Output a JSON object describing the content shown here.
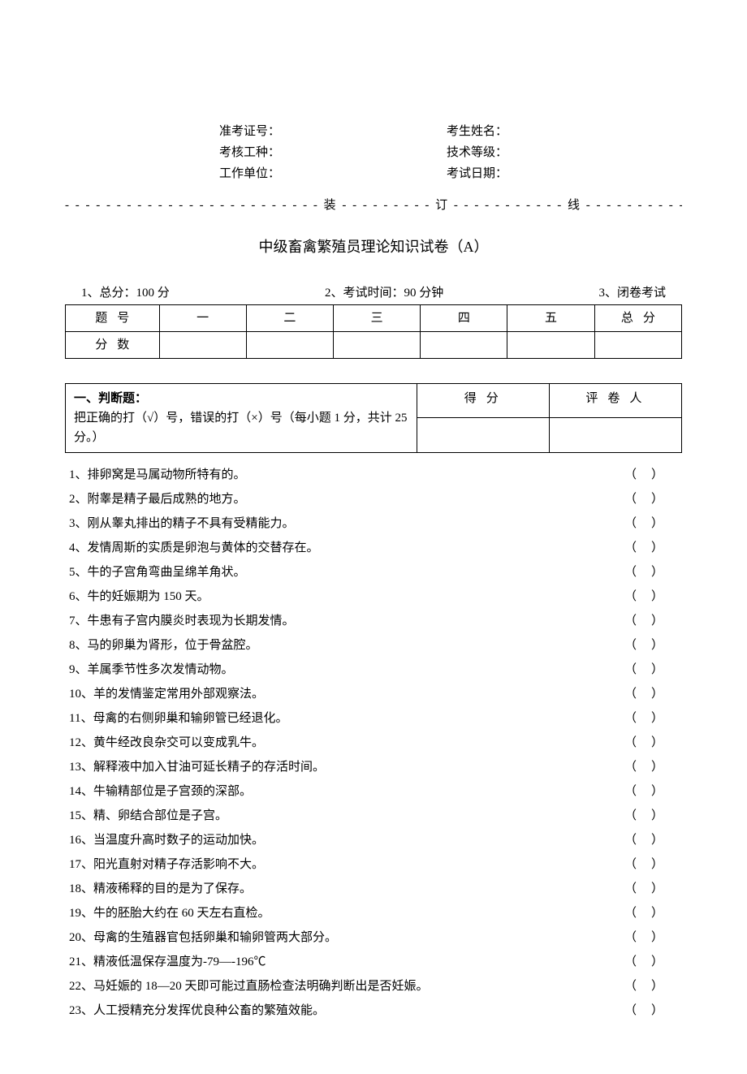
{
  "header": {
    "rows": [
      {
        "left": "准考证号：",
        "right": "考生姓名："
      },
      {
        "left": "考核工种：",
        "right": "技术等级："
      },
      {
        "left": "工作单位：",
        "right": "考试日期："
      }
    ],
    "divider": "- - - - - - - - - - - - - - - - - - - - - - - - - 装 - - - - - - - - - 订 - - - - - - - - - - - 线 - - - - - - - - - - - - - - - - - - - - - - - - -"
  },
  "title": "中级畜禽繁殖员理论知识试卷（A）",
  "exam_meta": {
    "item1": "1、总分：100 分",
    "item2": "2、考试时间：90 分钟",
    "item3": "3、闭卷考试"
  },
  "score_table": {
    "row1_label": "题号",
    "cols": [
      "一",
      "二",
      "三",
      "四",
      "五",
      "总分"
    ],
    "row2_label": "分数"
  },
  "section1": {
    "title": "一、判断题：",
    "desc": "把正确的打（√）号，错误的打（×）号（每小题 1 分，共计 25 分。）",
    "score_label": "得分",
    "grader_label": "评卷人"
  },
  "questions": [
    "1、排卵窝是马属动物所特有的。",
    "2、附睾是精子最后成熟的地方。",
    "3、刚从睾丸排出的精子不具有受精能力。",
    "4、发情周斯的实质是卵泡与黄体的交替存在。",
    "5、牛的子宫角弯曲呈绵羊角状。",
    "6、牛的妊娠期为 150 天。",
    "7、牛患有子宫内膜炎时表现为长期发情。",
    "8、马的卵巢为肾形，位于骨盆腔。",
    "9、羊属季节性多次发情动物。",
    "10、羊的发情鉴定常用外部观察法。",
    "11、母禽的右侧卵巢和输卵管已经退化。",
    "12、黄牛经改良杂交可以变成乳牛。",
    "13、解释液中加入甘油可延长精子的存活时间。",
    "14、牛输精部位是子宫颈的深部。",
    "15、精、卵结合部位是子宫。",
    "16、当温度升高时数子的运动加快。",
    "17、阳光直射对精子存活影响不大。",
    "18、精液稀释的目的是为了保存。",
    "19、牛的胚胎大约在 60 天左右直检。",
    "20、母禽的生殖器官包括卵巢和输卵管两大部分。",
    "21、精液低温保存温度为-79—-196℃",
    "22、马妊娠的 18—20 天即可能过直肠检查法明确判断出是否妊娠。",
    "23、人工授精充分发挥优良种公畜的繁殖效能。"
  ],
  "paren": "（）"
}
